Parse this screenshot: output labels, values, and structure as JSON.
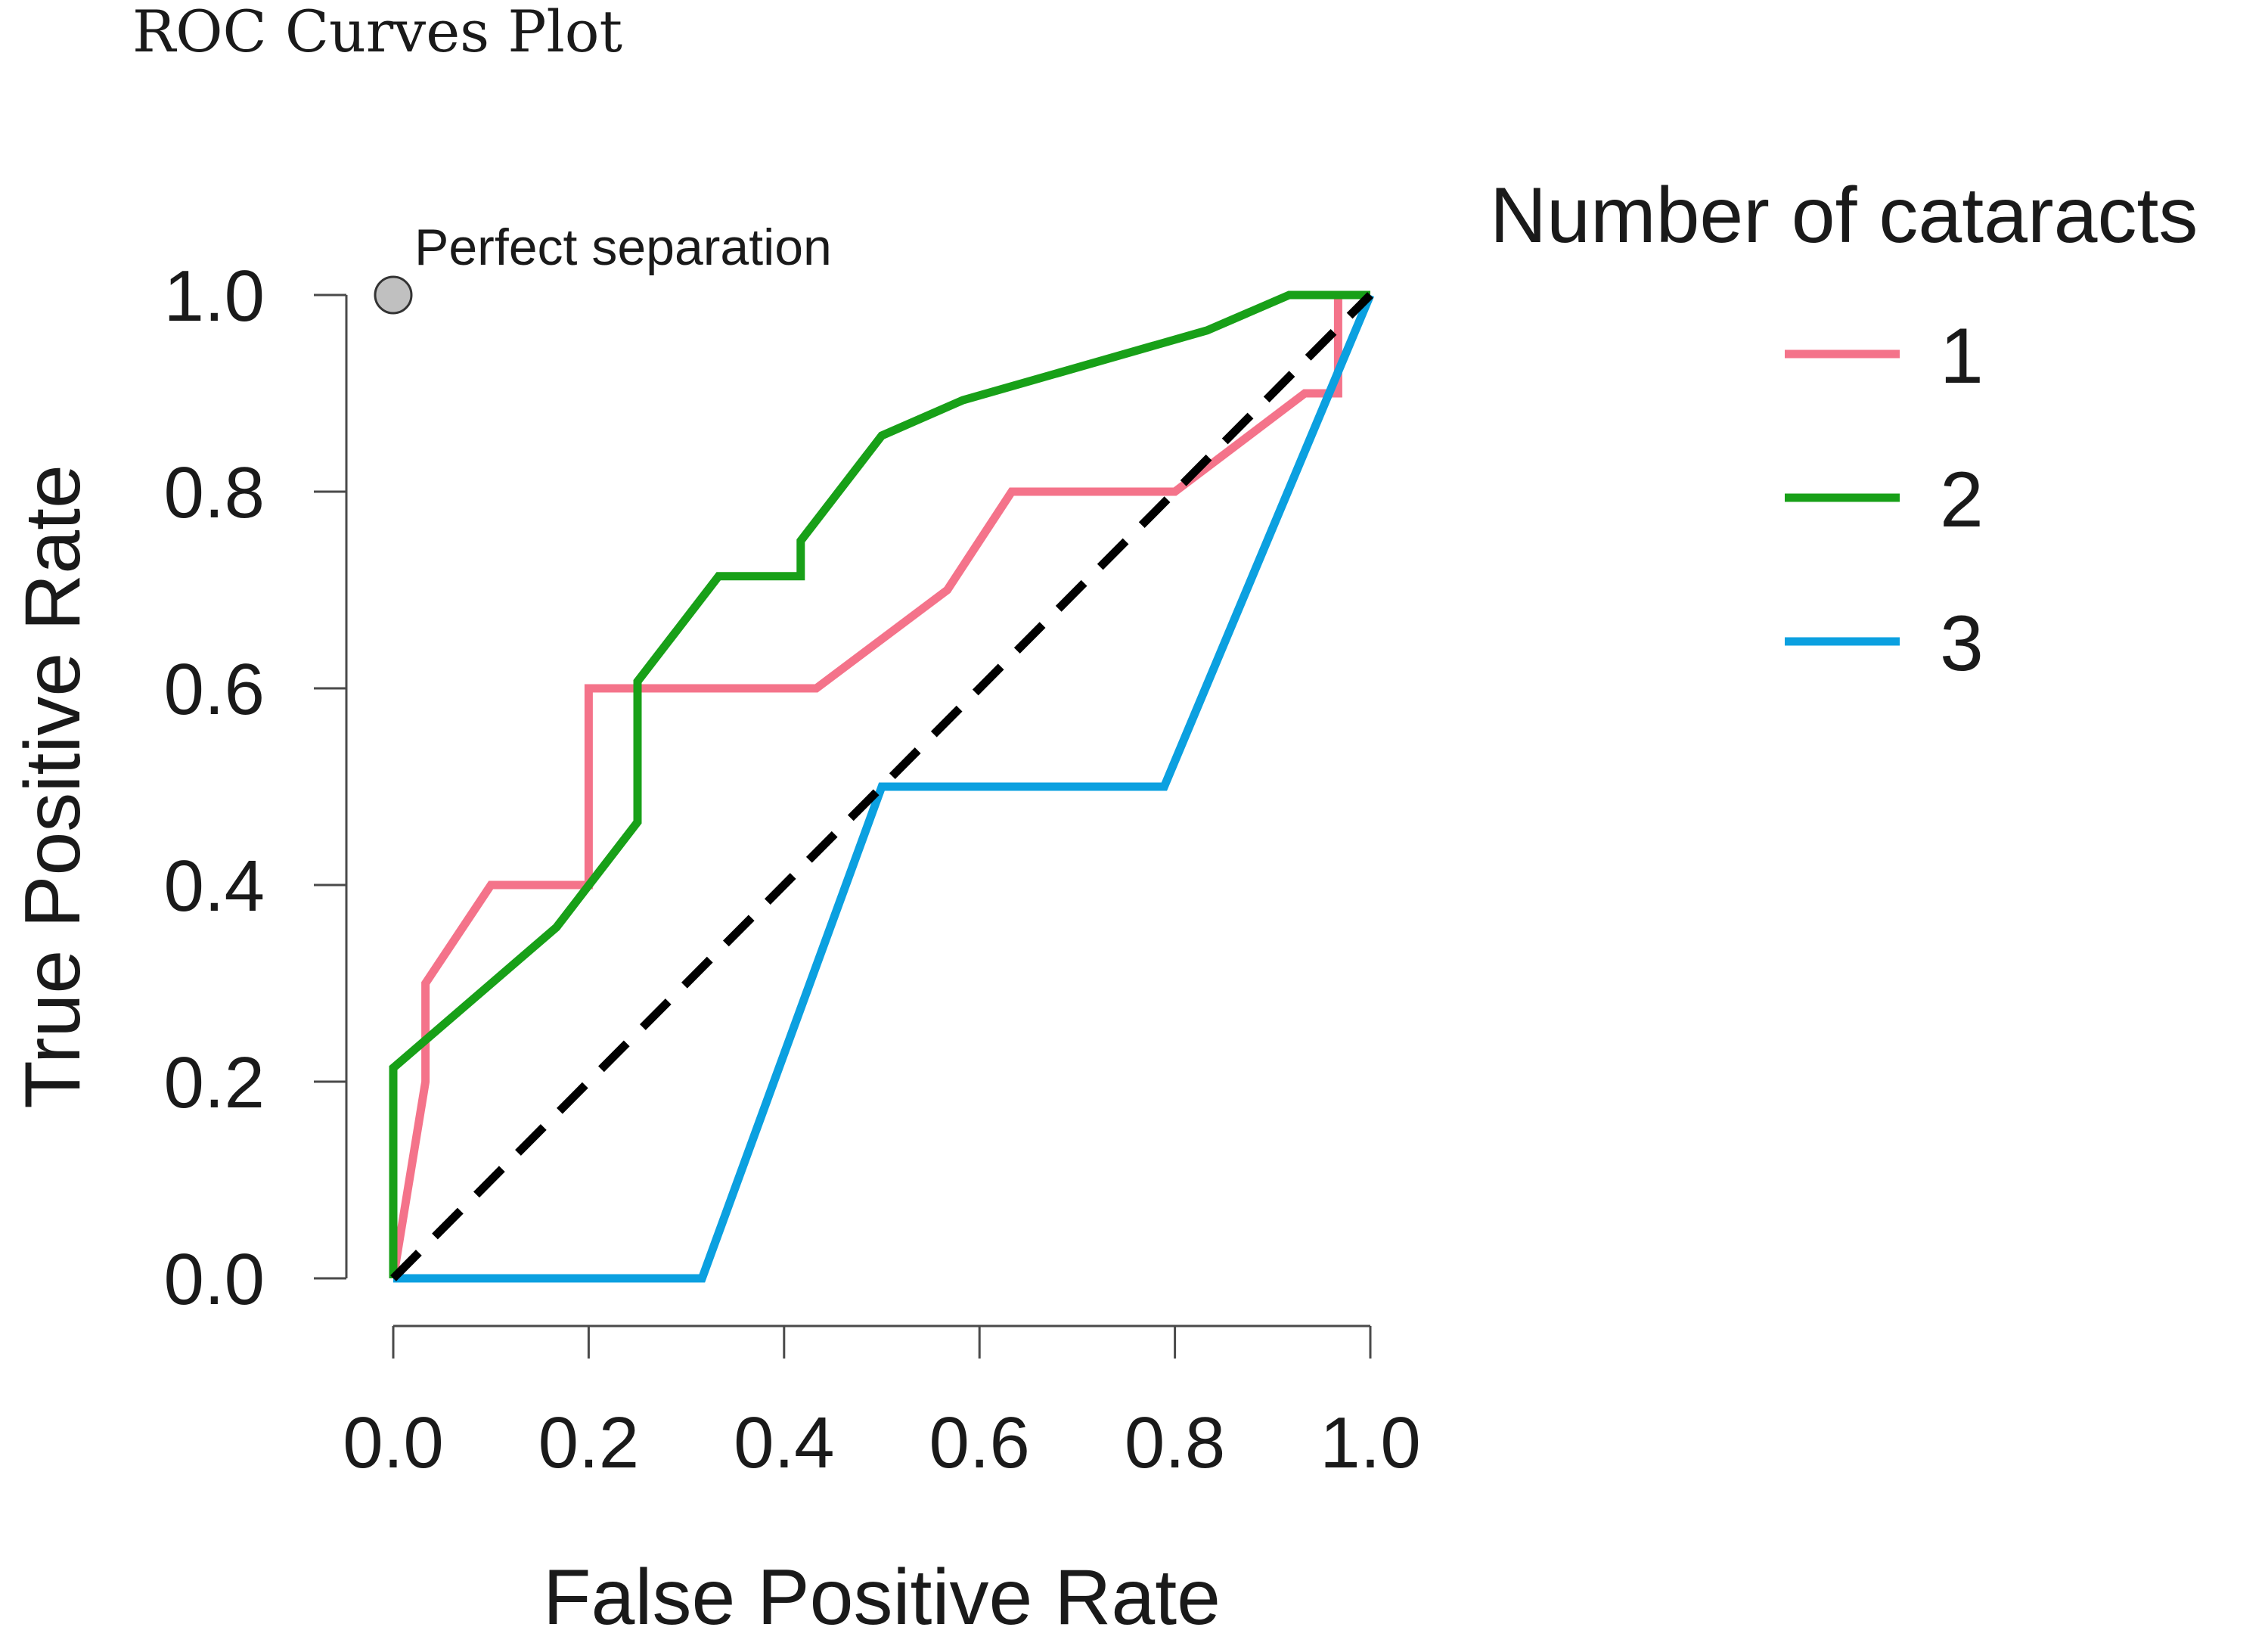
{
  "chart_data": {
    "type": "line",
    "title": "ROC Curves Plot",
    "xlabel": "False Positive Rate",
    "ylabel": "True Positive Rate",
    "xlim": [
      0,
      1
    ],
    "ylim": [
      0,
      1
    ],
    "x_ticks": [
      0.0,
      0.2,
      0.4,
      0.6,
      0.8,
      1.0
    ],
    "y_ticks": [
      0.0,
      0.2,
      0.4,
      0.6,
      0.8,
      1.0
    ],
    "x_tick_labels": [
      "0.0",
      "0.2",
      "0.4",
      "0.6",
      "0.8",
      "1.0"
    ],
    "y_tick_labels": [
      "0.0",
      "0.2",
      "0.4",
      "0.6",
      "0.8",
      "1.0"
    ],
    "grid": false,
    "legend": {
      "title": "Number of cataracts",
      "position": "right"
    },
    "series": [
      {
        "name": "1",
        "color": "#f4738a",
        "x": [
          0,
          0.033,
          0.033,
          0.1,
          0.2,
          0.2,
          0.433,
          0.567,
          0.633,
          0.8,
          0.933,
          0.967,
          0.967
        ],
        "y": [
          0,
          0.2,
          0.3,
          0.4,
          0.4,
          0.6,
          0.6,
          0.7,
          0.8,
          0.8,
          0.9,
          0.9,
          1.0
        ]
      },
      {
        "name": "2",
        "color": "#18a018",
        "x": [
          0,
          0,
          0.167,
          0.25,
          0.25,
          0.333,
          0.417,
          0.417,
          0.5,
          0.583,
          0.833,
          0.917,
          1.0
        ],
        "y": [
          0,
          0.214,
          0.357,
          0.464,
          0.607,
          0.714,
          0.714,
          0.75,
          0.857,
          0.893,
          0.964,
          1.0,
          1.0
        ]
      },
      {
        "name": "3",
        "color": "#0ba0e0",
        "x": [
          0,
          0.316,
          0.5,
          0.789,
          1.0
        ],
        "y": [
          0,
          0,
          0.5,
          0.5,
          1.0
        ]
      }
    ],
    "reference_line": {
      "x": [
        0,
        1
      ],
      "y": [
        0,
        1
      ],
      "style": "dashed",
      "color": "#000000"
    },
    "annotation": {
      "text": "Perfect separation",
      "x": 0,
      "y": 1
    }
  }
}
